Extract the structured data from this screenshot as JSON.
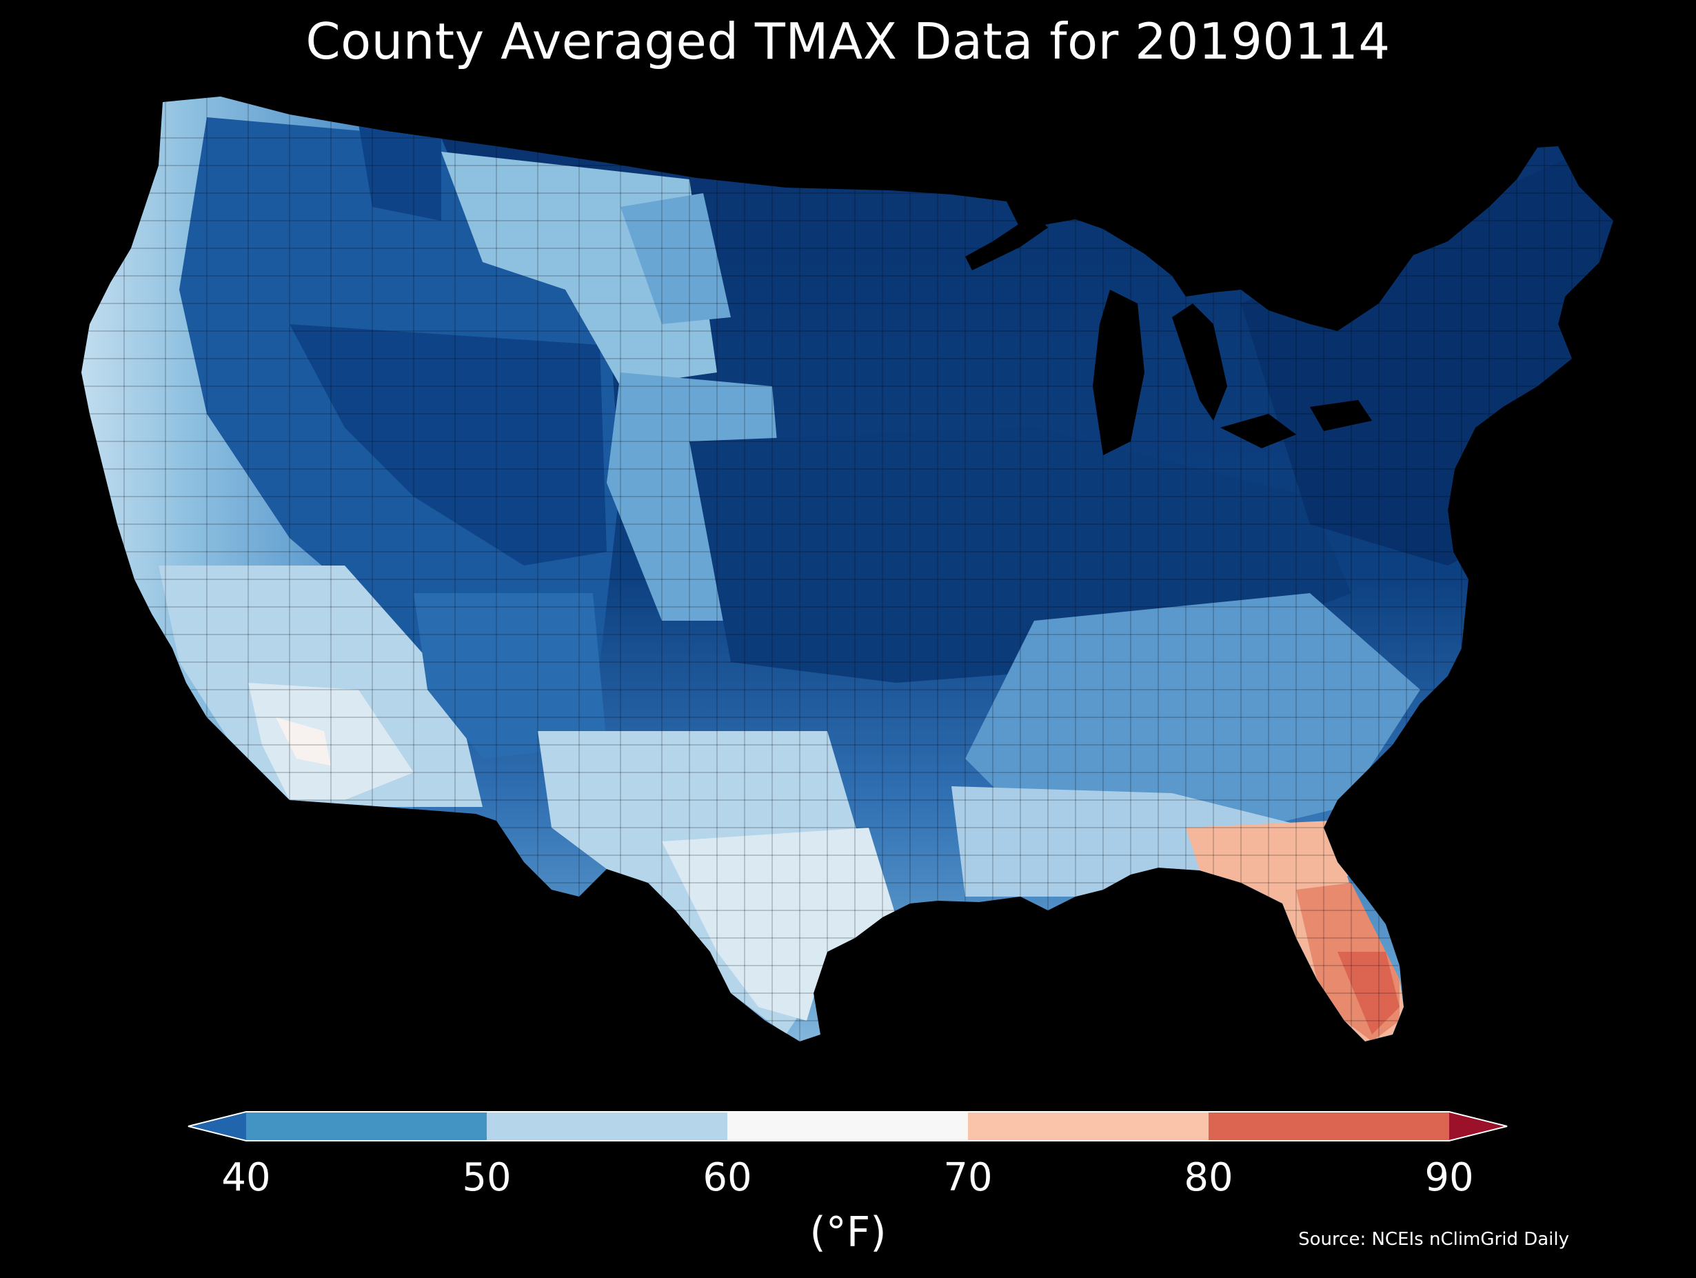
{
  "title": "County Averaged TMAX Data for 20190114",
  "colorbar": {
    "ticks": [
      "40",
      "50",
      "60",
      "70",
      "80",
      "90"
    ],
    "units": "(°F)",
    "bins": [
      {
        "range": [
          -999,
          40
        ],
        "color": "#2166ac"
      },
      {
        "range": [
          40,
          50
        ],
        "color": "#4393c3"
      },
      {
        "range": [
          50,
          60
        ],
        "color": "#b5d5ea"
      },
      {
        "range": [
          60,
          70
        ],
        "color": "#f7f7f7"
      },
      {
        "range": [
          70,
          80
        ],
        "color": "#f9c4aa"
      },
      {
        "range": [
          80,
          90
        ],
        "color": "#dc6552"
      },
      {
        "range": [
          90,
          999
        ],
        "color": "#9b1129"
      }
    ],
    "extend": "both"
  },
  "source": "Source: NCEIs nClimGrid Daily",
  "map_colors": {
    "background": "#000000",
    "darkest": "#08306b",
    "dark": "#0e4487",
    "mid_dark": "#1c5aa0",
    "mid": "#3d82c2",
    "light": "#8ec0e0",
    "lighter": "#c8e0f0",
    "near_white": "#eef5fa",
    "warm": "#f4b79b",
    "warmer": "#e78a6e",
    "hot": "#dc6552"
  }
}
